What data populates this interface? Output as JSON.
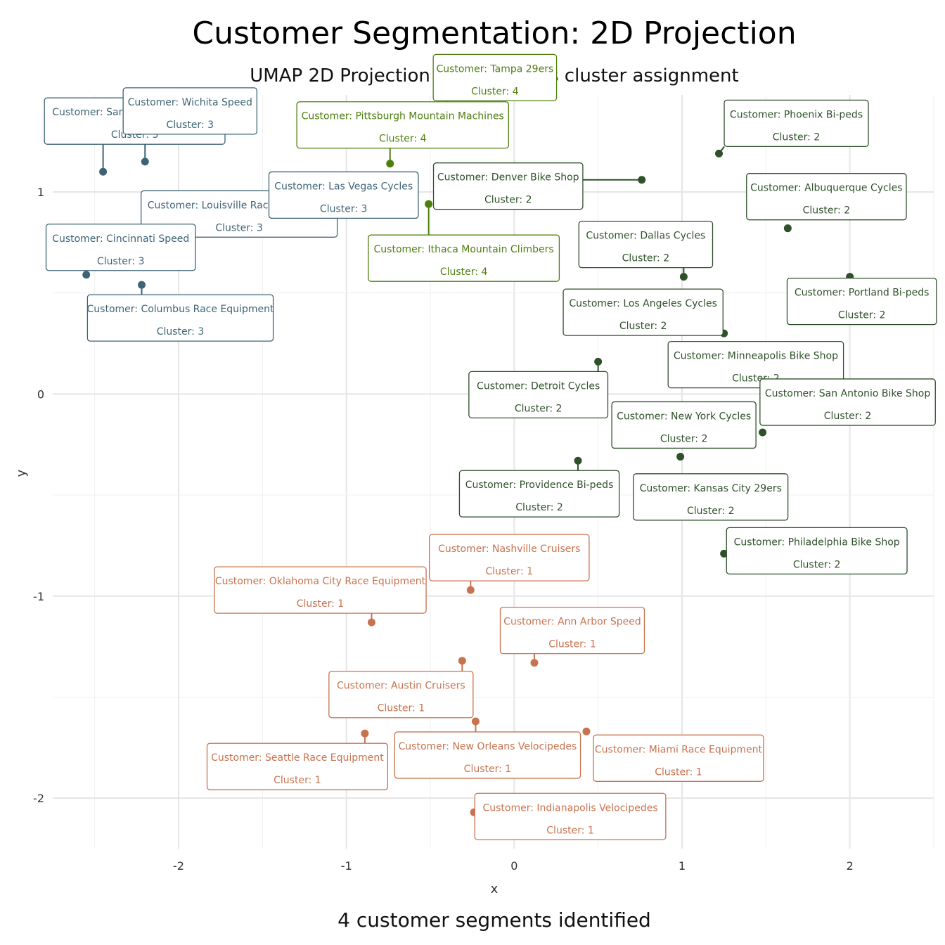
{
  "title": "Customer Segmentation: 2D Projection",
  "subtitle": "UMAP 2D Projection with K-means cluster assignment",
  "caption": "4 customer segments identified",
  "colors": {
    "1": "#c8734f",
    "2": "#2e5129",
    "3": "#3d6474",
    "4": "#4d7f0e"
  },
  "label_prefix": "Customer: ",
  "cluster_prefix": "Cluster: ",
  "chart_data": {
    "type": "scatter",
    "xlabel": "x",
    "ylabel": "y",
    "xlim": [
      -2.75,
      2.5
    ],
    "ylim": [
      -2.25,
      1.48
    ],
    "xticks": [
      -2,
      -1,
      0,
      1,
      2
    ],
    "yticks": [
      -2,
      -1,
      0,
      1
    ],
    "grid": true,
    "legend": "none",
    "points": [
      {
        "name": "San Francisco Cruisers",
        "cluster": 3,
        "x": -2.45,
        "y": 1.1
      },
      {
        "name": "Wichita Speed",
        "cluster": 3,
        "x": -2.2,
        "y": 1.15
      },
      {
        "name": "Louisville Race Equipment",
        "cluster": 3,
        "x": -2.1,
        "y": 0.95
      },
      {
        "name": "Las Vegas Cycles",
        "cluster": 3,
        "x": -1.62,
        "y": 0.88
      },
      {
        "name": "Cincinnati Speed",
        "cluster": 3,
        "x": -2.55,
        "y": 0.59
      },
      {
        "name": "Columbus Race Equipment",
        "cluster": 3,
        "x": -2.22,
        "y": 0.54
      },
      {
        "name": "Pittsburgh Mountain Machines",
        "cluster": 4,
        "x": -0.74,
        "y": 1.14
      },
      {
        "name": "Tampa 29ers",
        "cluster": 4,
        "x": -0.4,
        "y": 1.27
      },
      {
        "name": "Ithaca Mountain Climbers",
        "cluster": 4,
        "x": -0.51,
        "y": 0.94
      },
      {
        "name": "Phoenix Bi-peds",
        "cluster": 2,
        "x": 1.22,
        "y": 1.19
      },
      {
        "name": "Denver Bike Shop",
        "cluster": 2,
        "x": 0.76,
        "y": 1.06
      },
      {
        "name": "Albuquerque Cycles",
        "cluster": 2,
        "x": 1.63,
        "y": 0.82
      },
      {
        "name": "Dallas Cycles",
        "cluster": 2,
        "x": 1.01,
        "y": 0.58
      },
      {
        "name": "Portland Bi-peds",
        "cluster": 2,
        "x": 2.0,
        "y": 0.58
      },
      {
        "name": "Los Angeles Cycles",
        "cluster": 2,
        "x": 1.25,
        "y": 0.3
      },
      {
        "name": "Minneapolis Bike Shop",
        "cluster": 2,
        "x": 1.67,
        "y": 0.18
      },
      {
        "name": "Detroit Cycles",
        "cluster": 2,
        "x": 0.5,
        "y": 0.16
      },
      {
        "name": "San Antonio Bike Shop",
        "cluster": 2,
        "x": 1.48,
        "y": -0.19
      },
      {
        "name": "New York Cycles",
        "cluster": 2,
        "x": 0.99,
        "y": -0.31
      },
      {
        "name": "Providence Bi-peds",
        "cluster": 2,
        "x": 0.38,
        "y": -0.33
      },
      {
        "name": "Kansas City 29ers",
        "cluster": 2,
        "x": 1.2,
        "y": -0.52
      },
      {
        "name": "Philadelphia Bike Shop",
        "cluster": 2,
        "x": 1.25,
        "y": -0.79
      },
      {
        "name": "Nashville Cruisers",
        "cluster": 1,
        "x": -0.26,
        "y": -0.97
      },
      {
        "name": "Oklahoma City Race Equipment",
        "cluster": 1,
        "x": -0.85,
        "y": -1.13
      },
      {
        "name": "Ann Arbor Speed",
        "cluster": 1,
        "x": 0.12,
        "y": -1.33
      },
      {
        "name": "Austin Cruisers",
        "cluster": 1,
        "x": -0.31,
        "y": -1.32
      },
      {
        "name": "New Orleans Velocipedes",
        "cluster": 1,
        "x": -0.23,
        "y": -1.62
      },
      {
        "name": "Seattle Race Equipment",
        "cluster": 1,
        "x": -0.89,
        "y": -1.68
      },
      {
        "name": "Miami Race Equipment",
        "cluster": 1,
        "x": 0.43,
        "y": -1.67
      },
      {
        "name": "Indianapolis Velocipedes",
        "cluster": 1,
        "x": -0.24,
        "y": -2.07
      }
    ]
  }
}
